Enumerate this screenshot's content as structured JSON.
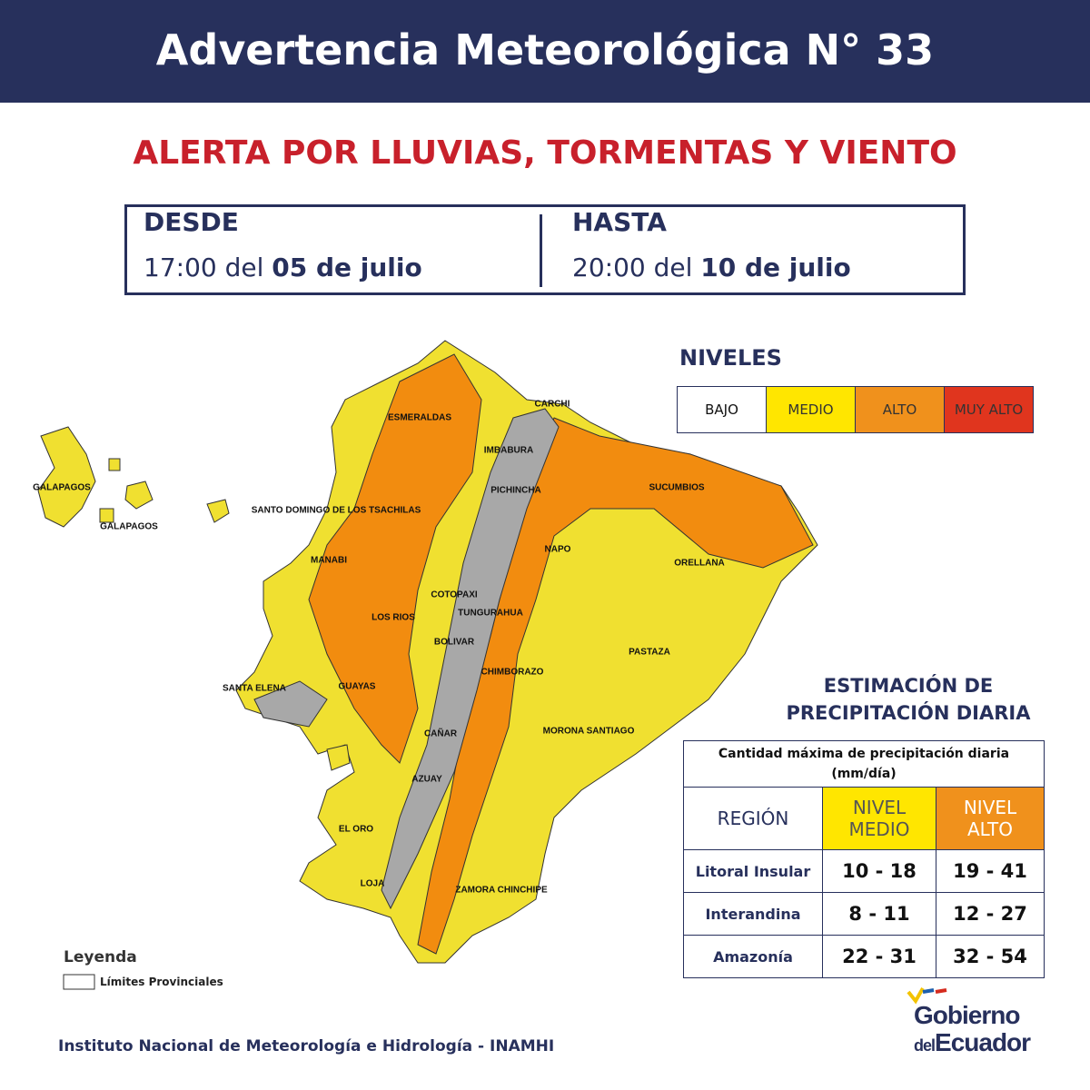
{
  "header": {
    "title": "Advertencia Meteorológica N° 33"
  },
  "subtitle": "ALERTA POR LLUVIAS, TORMENTAS Y VIENTO",
  "period": {
    "from": {
      "label": "DESDE",
      "time": "17:00 del",
      "date": "05 de julio"
    },
    "to": {
      "label": "HASTA",
      "time": "20:00 del",
      "date": "10 de julio"
    }
  },
  "levels": {
    "title": "NIVELES",
    "items": [
      "BAJO",
      "MEDIO",
      "ALTO",
      "MUY ALTO"
    ]
  },
  "map": {
    "labels": [
      "GALAPAGOS",
      "GALAPAGOS",
      "ESMERALDAS",
      "CARCHI",
      "IMBABURA",
      "PICHINCHA",
      "SANTO DOMINGO DE LOS TSACHILAS",
      "SUCUMBIOS",
      "MANABI",
      "NAPO",
      "ORELLANA",
      "COTOPAXI",
      "LOS RIOS",
      "TUNGURAHUA",
      "BOLIVAR",
      "PASTAZA",
      "CHIMBORAZO",
      "SANTA ELENA",
      "GUAYAS",
      "CAÑAR",
      "MORONA SANTIAGO",
      "AZUAY",
      "EL ORO",
      "LOJA",
      "ZAMORA CHINCHIPE"
    ]
  },
  "legend": {
    "title": "Leyenda",
    "item": "Límites Provinciales"
  },
  "table": {
    "title": [
      "ESTIMACIÓN DE",
      "PRECIPITACIÓN DIARIA"
    ],
    "caption": [
      "Cantidad máxima de precipitación diaria",
      "(mm/día)"
    ],
    "headers": [
      "REGIÓN",
      [
        "NIVEL",
        "MEDIO"
      ],
      [
        "NIVEL",
        "ALTO"
      ]
    ],
    "rows": [
      [
        "Litoral Insular",
        "10 - 18",
        "19 - 41"
      ],
      [
        "Interandina",
        "8 - 11",
        "12 - 27"
      ],
      [
        "Amazonía",
        "22 - 31",
        "32 - 54"
      ]
    ]
  },
  "footer": {
    "source": "Instituto Nacional de Meteorología e Hidrología - INAMHI"
  },
  "logo": {
    "line1": "Gobierno",
    "line2a": "del",
    "line2b": "Ecuador"
  }
}
